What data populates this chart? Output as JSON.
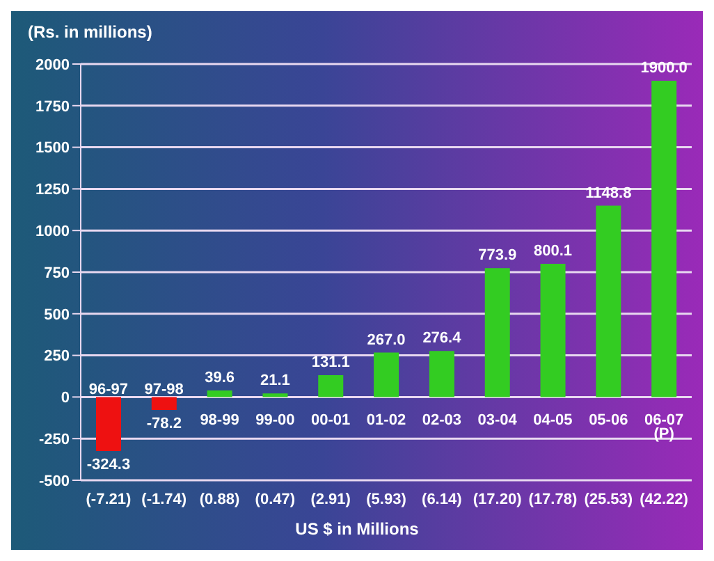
{
  "chart_data": {
    "type": "bar",
    "ylabel": "(Rs. in millions)",
    "xlabel": "US $ in Millions",
    "categories": [
      "96-97",
      "97-98",
      "98-99",
      "99-00",
      "00-01",
      "01-02",
      "02-03",
      "03-04",
      "04-05",
      "05-06",
      "06-07 (P)"
    ],
    "values": [
      -324.3,
      -78.2,
      39.6,
      21.1,
      131.1,
      267.0,
      276.4,
      773.9,
      800.1,
      1148.8,
      1900.0
    ],
    "value_labels": [
      "-324.3",
      "-78.2",
      "39.6",
      "21.1",
      "131.1",
      "267.0",
      "276.4",
      "773.9",
      "800.1",
      "1148.8",
      "1900.0"
    ],
    "colors": [
      "#ee1111",
      "#ee1111",
      "#33cc22",
      "#33cc22",
      "#33cc22",
      "#33cc22",
      "#33cc22",
      "#33cc22",
      "#33cc22",
      "#33cc22",
      "#33cc22"
    ],
    "annotations": [
      "(-7.21)",
      "(-1.74)",
      "(0.88)",
      "(0.47)",
      "(2.91)",
      "(5.93)",
      "(6.14)",
      "(17.20)",
      "(17.78)",
      "(25.53)",
      "(42.22)"
    ],
    "ylim": [
      -500,
      2000
    ],
    "yticks": [
      -500,
      -250,
      0,
      250,
      500,
      750,
      1000,
      1250,
      1500,
      1750,
      2000
    ],
    "grid": "y"
  }
}
